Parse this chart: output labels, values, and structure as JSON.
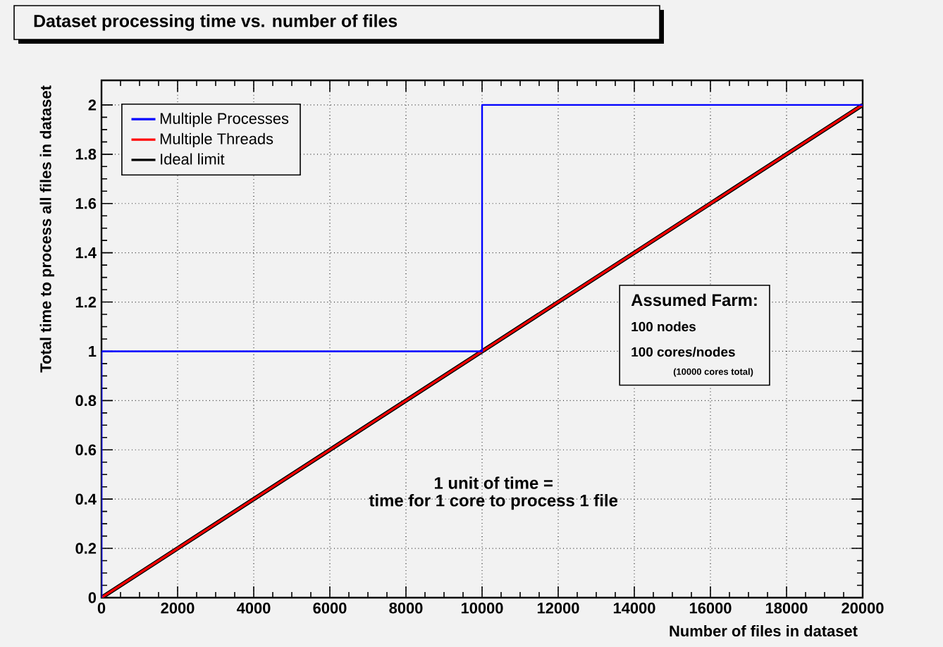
{
  "chart_data": {
    "type": "line",
    "title": "Dataset processing time vs. number of files",
    "xlabel": "Number of files in dataset",
    "ylabel": "Total time to process all files in dataset",
    "series": [
      {
        "name": "Multiple Processes",
        "color": "#0000ff",
        "x": [
          0,
          0,
          10000,
          10000,
          20000
        ],
        "values": [
          0,
          1,
          1,
          2,
          2
        ]
      },
      {
        "name": "Multiple Threads",
        "color": "#ff0000",
        "x": [
          0,
          20000
        ],
        "values": [
          0,
          2
        ]
      },
      {
        "name": "Ideal limit",
        "color": "#000000",
        "x": [
          0,
          20000
        ],
        "values": [
          0,
          2
        ]
      }
    ],
    "xlim": [
      0,
      20000
    ],
    "ylim": [
      0,
      2.1
    ],
    "xticks": [
      0,
      2000,
      4000,
      6000,
      8000,
      10000,
      12000,
      14000,
      16000,
      18000,
      20000
    ],
    "yticks": [
      0,
      0.2,
      0.4,
      0.6,
      0.8,
      1,
      1.2,
      1.4,
      1.6,
      1.8,
      2
    ],
    "grid": true,
    "legend": "top left",
    "marker": "none",
    "line_style": "solid",
    "annotations": [
      "1 unit of time =",
      "time for 1 core to process 1 file",
      "Assumed Farm:",
      "100 nodes",
      "100 cores/nodes",
      "(10000 cores total)"
    ]
  }
}
